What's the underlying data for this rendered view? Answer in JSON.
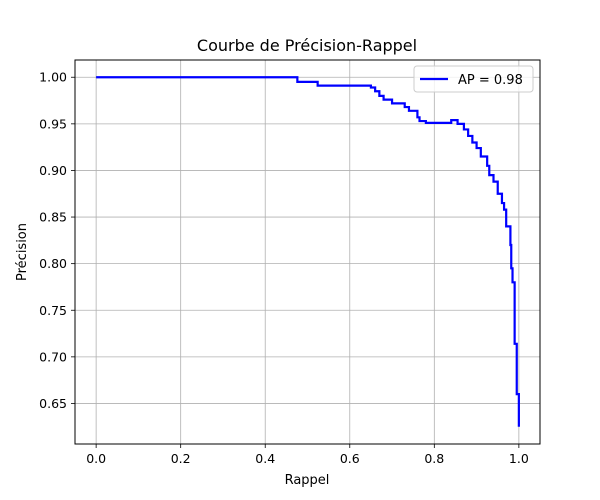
{
  "chart_data": {
    "type": "line",
    "title": "Courbe de Précision-Rappel",
    "xlabel": "Rappel",
    "ylabel": "Précision",
    "xlim": [
      -0.05,
      1.05
    ],
    "ylim": [
      0.6065,
      1.0185
    ],
    "xticks": [
      0.0,
      0.2,
      0.4,
      0.6,
      0.8,
      1.0
    ],
    "yticks": [
      0.65,
      0.7,
      0.75,
      0.8,
      0.85,
      0.9,
      0.95,
      1.0
    ],
    "xtick_labels": [
      "0.0",
      "0.2",
      "0.4",
      "0.6",
      "0.8",
      "1.0"
    ],
    "ytick_labels": [
      "0.65",
      "0.70",
      "0.75",
      "0.80",
      "0.85",
      "0.90",
      "0.95",
      "1.00"
    ],
    "grid": true,
    "legend_position": "top-right",
    "series": [
      {
        "name": "AP = 0.98",
        "color": "#0000ff",
        "x": [
          0.0,
          0.476,
          0.476,
          0.524,
          0.524,
          0.65,
          0.65,
          0.66,
          0.66,
          0.67,
          0.67,
          0.68,
          0.68,
          0.7,
          0.7,
          0.73,
          0.73,
          0.74,
          0.74,
          0.76,
          0.76,
          0.765,
          0.765,
          0.78,
          0.78,
          0.84,
          0.84,
          0.855,
          0.855,
          0.87,
          0.87,
          0.88,
          0.88,
          0.89,
          0.89,
          0.9,
          0.9,
          0.91,
          0.91,
          0.925,
          0.925,
          0.93,
          0.93,
          0.94,
          0.94,
          0.95,
          0.95,
          0.96,
          0.96,
          0.965,
          0.965,
          0.97,
          0.97,
          0.98,
          0.98,
          0.982,
          0.982,
          0.985,
          0.985,
          0.99,
          0.99,
          0.995,
          0.995,
          1.0,
          1.0
        ],
        "y": [
          1.0,
          1.0,
          0.995,
          0.995,
          0.991,
          0.991,
          0.989,
          0.989,
          0.985,
          0.985,
          0.98,
          0.98,
          0.976,
          0.976,
          0.972,
          0.972,
          0.968,
          0.968,
          0.964,
          0.964,
          0.957,
          0.957,
          0.953,
          0.953,
          0.951,
          0.951,
          0.954,
          0.954,
          0.95,
          0.95,
          0.944,
          0.944,
          0.937,
          0.937,
          0.93,
          0.93,
          0.924,
          0.924,
          0.915,
          0.915,
          0.905,
          0.905,
          0.895,
          0.895,
          0.888,
          0.888,
          0.875,
          0.875,
          0.865,
          0.865,
          0.858,
          0.858,
          0.84,
          0.84,
          0.82,
          0.82,
          0.795,
          0.795,
          0.78,
          0.78,
          0.714,
          0.714,
          0.66,
          0.66,
          0.625
        ]
      }
    ]
  }
}
